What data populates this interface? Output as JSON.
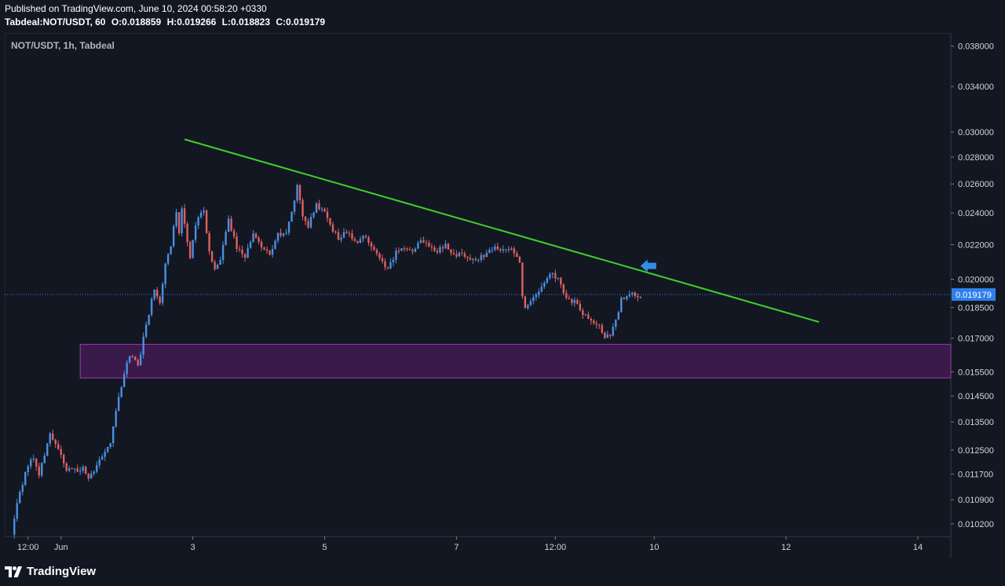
{
  "header": {
    "published": "Published on TradingView.com, June 10, 2024 00:58:20 +0330",
    "symbol_line": "Tabdeal:NOT/USDT, 60",
    "ohlc": {
      "o_label": "O:",
      "o": "0.018859",
      "h_label": "H:",
      "h": "0.019266",
      "l_label": "L:",
      "l": "0.018823",
      "c_label": "C:",
      "c": "0.019179"
    }
  },
  "footer": {
    "brand": "TradingView",
    "logo_icon": "tradingview-logo-icon"
  },
  "colors": {
    "background": "#131722",
    "up": "#4a90e2",
    "down": "#e0605f",
    "trendline": "#3fd12b",
    "zone_fill": "#4a1d5c",
    "zone_border": "#9b3bb0",
    "price_line": "#2f80ed",
    "arrow": "#2f8fe6"
  },
  "chart_data": {
    "type": "candlestick",
    "legend": "NOT/USDT, 1h, Tabdeal",
    "y_scale": "log",
    "ylim": [
      0.00985,
      0.0394
    ],
    "y_ticks": [
      "0.038000",
      "0.034000",
      "0.030000",
      "0.028000",
      "0.026000",
      "0.024000",
      "0.022000",
      "0.020000",
      "0.018500",
      "0.017000",
      "0.015500",
      "0.014500",
      "0.013500",
      "0.012500",
      "0.011700",
      "0.010900",
      "0.010200"
    ],
    "x_ticks": [
      {
        "label": "12:00",
        "t": "2024-05-31 12:00"
      },
      {
        "label": "Jun",
        "t": "2024-06-01 00:00"
      },
      {
        "label": "3",
        "t": "2024-06-03 00:00"
      },
      {
        "label": "5",
        "t": "2024-06-05 00:00"
      },
      {
        "label": "7",
        "t": "2024-06-07 00:00"
      },
      {
        "label": "12:00",
        "t": "2024-06-08 12:00"
      },
      {
        "label": "10",
        "t": "2024-06-10 00:00"
      },
      {
        "label": "12",
        "t": "2024-06-12 00:00"
      },
      {
        "label": "14",
        "t": "2024-06-14 00:00"
      }
    ],
    "x_range": [
      "2024-05-31 03:30",
      "2024-06-14 12:00"
    ],
    "last_price": "0.019179",
    "path": [
      [
        "2024-05-31 07:00",
        0.0099
      ],
      [
        "2024-05-31 09:00",
        0.0108
      ],
      [
        "2024-05-31 11:00",
        0.0114
      ],
      [
        "2024-05-31 13:00",
        0.012
      ],
      [
        "2024-05-31 15:00",
        0.0122
      ],
      [
        "2024-05-31 17:00",
        0.0117
      ],
      [
        "2024-05-31 19:00",
        0.0123
      ],
      [
        "2024-05-31 21:00",
        0.0131
      ],
      [
        "2024-05-31 23:00",
        0.0127
      ],
      [
        "2024-06-01 01:00",
        0.0124
      ],
      [
        "2024-06-01 03:00",
        0.0118
      ],
      [
        "2024-06-01 05:00",
        0.0119
      ],
      [
        "2024-06-01 07:00",
        0.0118
      ],
      [
        "2024-06-01 09:00",
        0.0119
      ],
      [
        "2024-06-01 11:00",
        0.0116
      ],
      [
        "2024-06-01 13:00",
        0.0118
      ],
      [
        "2024-06-01 15:00",
        0.0121
      ],
      [
        "2024-06-01 17:00",
        0.0125
      ],
      [
        "2024-06-01 19:00",
        0.0128
      ],
      [
        "2024-06-01 21:00",
        0.014
      ],
      [
        "2024-06-01 23:00",
        0.0148
      ],
      [
        "2024-06-02 01:00",
        0.016
      ],
      [
        "2024-06-02 03:00",
        0.0162
      ],
      [
        "2024-06-02 05:00",
        0.0157
      ],
      [
        "2024-06-02 07:00",
        0.017
      ],
      [
        "2024-06-02 09:00",
        0.0182
      ],
      [
        "2024-06-02 11:00",
        0.0195
      ],
      [
        "2024-06-02 13:00",
        0.0187
      ],
      [
        "2024-06-02 15:00",
        0.0208
      ],
      [
        "2024-06-02 17:00",
        0.022
      ],
      [
        "2024-06-02 19:00",
        0.0242
      ],
      [
        "2024-06-02 20:00",
        0.0228
      ],
      [
        "2024-06-02 21:00",
        0.0243
      ],
      [
        "2024-06-03 00:00",
        0.0212
      ],
      [
        "2024-06-03 02:00",
        0.0233
      ],
      [
        "2024-06-03 05:00",
        0.0242
      ],
      [
        "2024-06-03 07:00",
        0.0215
      ],
      [
        "2024-06-03 09:00",
        0.0205
      ],
      [
        "2024-06-03 11:00",
        0.0211
      ],
      [
        "2024-06-03 14:00",
        0.0236
      ],
      [
        "2024-06-03 17:00",
        0.0218
      ],
      [
        "2024-06-03 20:00",
        0.0212
      ],
      [
        "2024-06-03 23:00",
        0.0227
      ],
      [
        "2024-06-04 02:00",
        0.0219
      ],
      [
        "2024-06-04 05:00",
        0.0214
      ],
      [
        "2024-06-04 08:00",
        0.0226
      ],
      [
        "2024-06-04 11:00",
        0.0228
      ],
      [
        "2024-06-04 13:00",
        0.024
      ],
      [
        "2024-06-04 15:00",
        0.0259
      ],
      [
        "2024-06-04 17:00",
        0.0238
      ],
      [
        "2024-06-04 19:00",
        0.0232
      ],
      [
        "2024-06-04 22:00",
        0.0245
      ],
      [
        "2024-06-05 01:00",
        0.0241
      ],
      [
        "2024-06-05 03:00",
        0.0232
      ],
      [
        "2024-06-05 06:00",
        0.0224
      ],
      [
        "2024-06-05 09:00",
        0.0228
      ],
      [
        "2024-06-05 12:00",
        0.0221
      ],
      [
        "2024-06-05 15:00",
        0.0225
      ],
      [
        "2024-06-05 18:00",
        0.022
      ],
      [
        "2024-06-05 21:00",
        0.0211
      ],
      [
        "2024-06-06 00:00",
        0.0205
      ],
      [
        "2024-06-06 03:00",
        0.0216
      ],
      [
        "2024-06-06 06:00",
        0.0219
      ],
      [
        "2024-06-06 09:00",
        0.0216
      ],
      [
        "2024-06-06 12:00",
        0.0222
      ],
      [
        "2024-06-06 15:00",
        0.0219
      ],
      [
        "2024-06-06 18:00",
        0.0216
      ],
      [
        "2024-06-06 21:00",
        0.022
      ],
      [
        "2024-06-07 00:00",
        0.0214
      ],
      [
        "2024-06-07 03:00",
        0.0214
      ],
      [
        "2024-06-07 06:00",
        0.0211
      ],
      [
        "2024-06-07 09:00",
        0.0212
      ],
      [
        "2024-06-07 12:00",
        0.0214
      ],
      [
        "2024-06-07 15:00",
        0.0219
      ],
      [
        "2024-06-07 18:00",
        0.0216
      ],
      [
        "2024-06-07 21:00",
        0.0218
      ],
      [
        "2024-06-08 00:00",
        0.021
      ],
      [
        "2024-06-08 01:00",
        0.019
      ],
      [
        "2024-06-08 02:00",
        0.0185
      ],
      [
        "2024-06-08 05:00",
        0.019
      ],
      [
        "2024-06-08 08:00",
        0.0196
      ],
      [
        "2024-06-08 11:00",
        0.0203
      ],
      [
        "2024-06-08 14:00",
        0.0201
      ],
      [
        "2024-06-08 17:00",
        0.0189
      ],
      [
        "2024-06-08 20:00",
        0.0188
      ],
      [
        "2024-06-08 23:00",
        0.0182
      ],
      [
        "2024-06-09 02:00",
        0.0178
      ],
      [
        "2024-06-09 05:00",
        0.0176
      ],
      [
        "2024-06-09 07:00",
        0.0171
      ],
      [
        "2024-06-09 09:00",
        0.0172
      ],
      [
        "2024-06-09 11:00",
        0.0178
      ],
      [
        "2024-06-09 13:00",
        0.0189
      ],
      [
        "2024-06-09 15:00",
        0.019
      ],
      [
        "2024-06-09 17:00",
        0.0192
      ],
      [
        "2024-06-09 19:00",
        0.0191
      ]
    ],
    "annotations": [
      {
        "type": "trendline",
        "from": [
          "2024-06-02 21:00",
          0.0294
        ],
        "to": [
          "2024-06-12 12:00",
          0.01778
        ]
      },
      {
        "type": "zone",
        "from": "2024-06-01 07:00",
        "to": "2024-06-14 12:00",
        "ylim": [
          0.01524,
          0.01672
        ]
      },
      {
        "type": "arrow",
        "direction": "left",
        "at": [
          "2024-06-09 19:00",
          0.02075
        ]
      },
      {
        "type": "price_line",
        "y": 0.019179
      }
    ]
  }
}
